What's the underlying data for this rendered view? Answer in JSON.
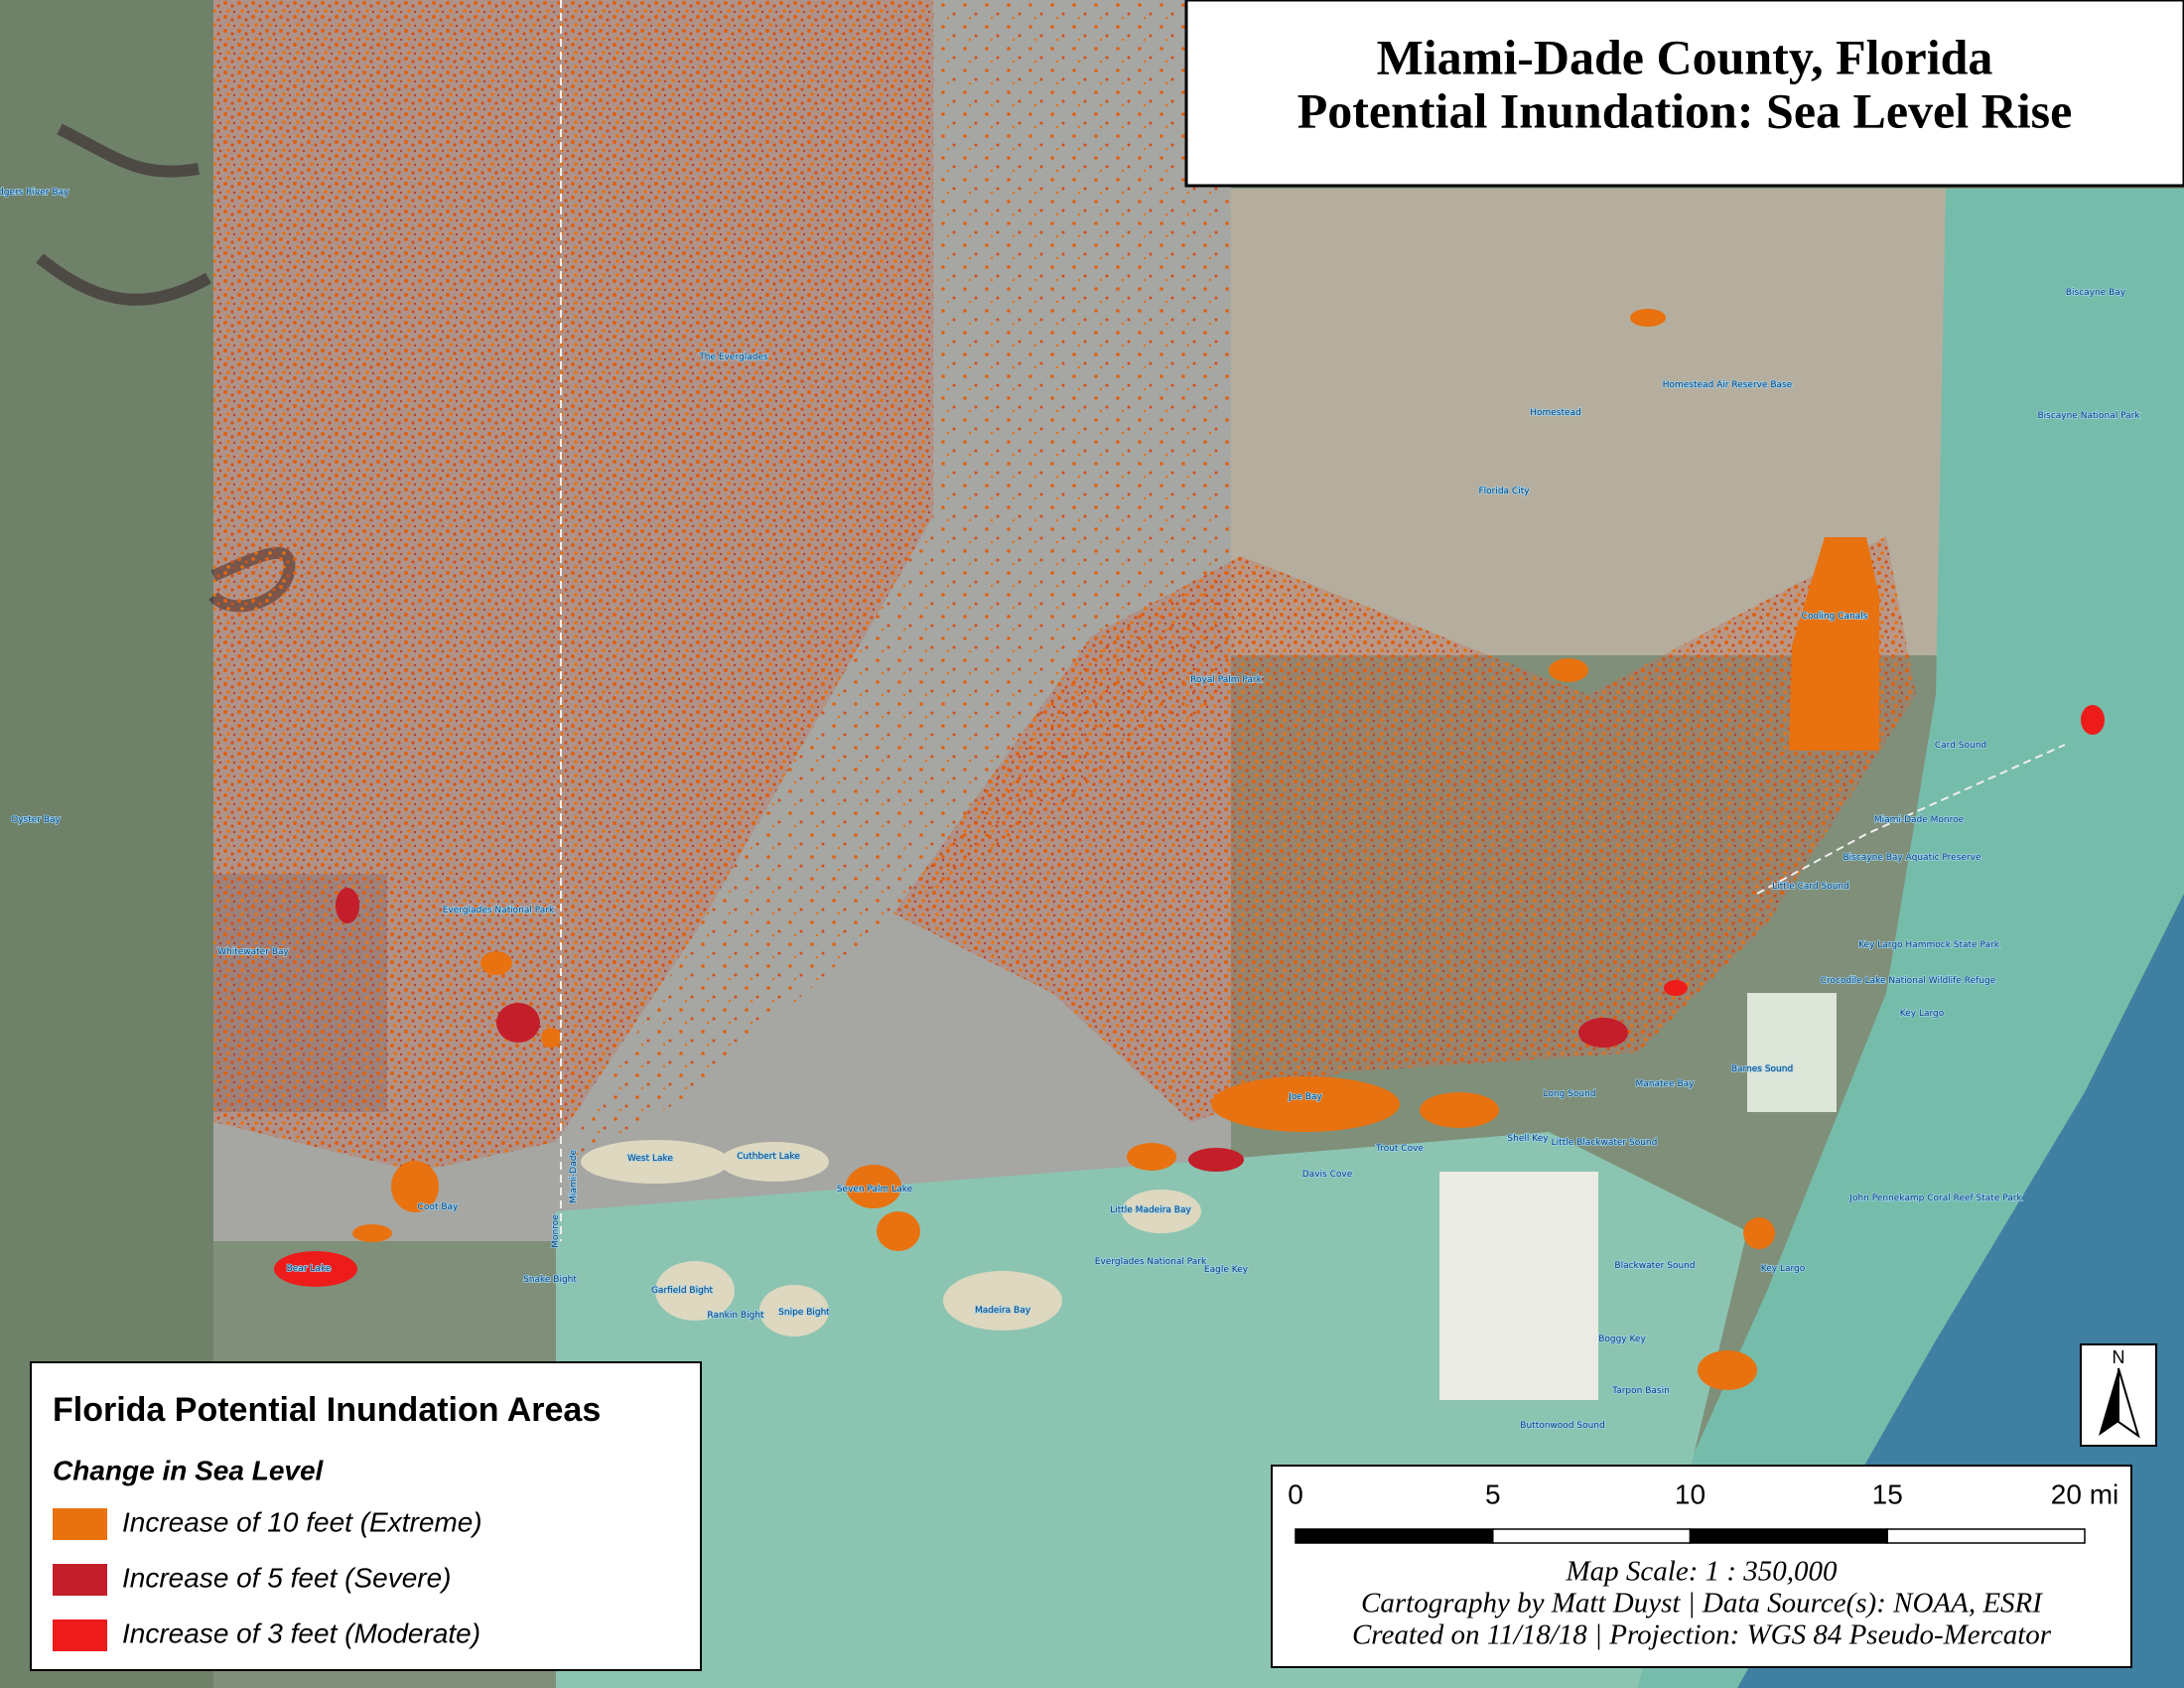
{
  "title": {
    "line1": "Miami-Dade County, Florida",
    "line2": "Potential Inundation: Sea Level Rise"
  },
  "legend": {
    "title": "Florida Potential Inundation Areas",
    "subtitle": "Change in Sea Level",
    "items": [
      {
        "label": "Increase of 10 feet (Extreme)",
        "color": "#e8720f"
      },
      {
        "label": "Increase of 5 feet (Severe)",
        "color": "#c41e2a"
      },
      {
        "label": "Increase of 3 feet (Moderate)",
        "color": "#ee1b1b"
      }
    ]
  },
  "scale_bar": {
    "ticks": [
      0,
      5,
      10,
      15,
      {
        "value": 20,
        "label": "20 mi"
      }
    ],
    "scale_text": "Map Scale: 1 : 350,000",
    "credit": "Cartography by Matt Duyst | Data Source(s): NOAA, ESRI",
    "created": "Created on 11/18/18 | Projection: WGS 84 Pseudo-Mercator"
  },
  "north_arrow": "N",
  "places": [
    "Rodgers River Bay",
    "The Everglades",
    "Homestead Air Reserve Base",
    "Homestead",
    "Florida City",
    "Biscayne Bay",
    "Biscayne National Park",
    "Cooling Canals",
    "Royal Palm Park",
    "Card Sound",
    "Miami-Dade Monroe",
    "Biscayne Bay Aquatic Preserve",
    "Little Card Sound",
    "Key Largo Hammock State Park",
    "Crocodile Lake National Wildlife Refuge",
    "Key Largo",
    "Oyster Bay",
    "Whitewater Bay",
    "Everglades National Park",
    "Joe Bay",
    "Long Sound",
    "Manatee Bay",
    "Barnes Sound",
    "Trout Cove",
    "Davis Cove",
    "Shell Key",
    "Little Blackwater Sound",
    "West Lake",
    "Cuthbert Lake",
    "Seven Palm Lake",
    "Coot Bay",
    "Little Madeira Bay",
    "Bear Lake",
    "Snake Bight",
    "Garfield Bight",
    "Rankin Bight",
    "Snipe Bight",
    "Madeira Bay",
    "Everglades National Park",
    "Eagle Key",
    "Blackwater Sound",
    "Key Largo",
    "John Pennekamp Coral Reef State Park",
    "Boggy Key",
    "Tarpon Basin",
    "Buttonwood Sound",
    "Miami-Dade",
    "Monroe"
  ]
}
